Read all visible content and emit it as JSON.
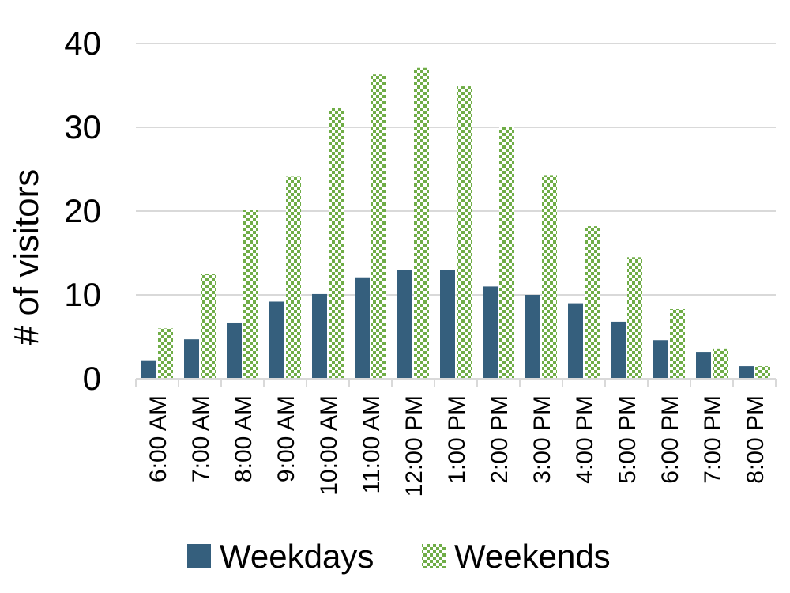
{
  "chart_data": {
    "type": "bar",
    "title": "",
    "xlabel": "",
    "ylabel": "# of visitors",
    "ylim": [
      0,
      40
    ],
    "yticks": [
      0,
      10,
      20,
      30,
      40
    ],
    "grid": true,
    "legend_position": "bottom",
    "categories": [
      "6:00 AM",
      "7:00 AM",
      "8:00 AM",
      "9:00 AM",
      "10:00 AM",
      "11:00 AM",
      "12:00 PM",
      "1:00 PM",
      "2:00 PM",
      "3:00 PM",
      "4:00 PM",
      "5:00 PM",
      "6:00 PM",
      "7:00 PM",
      "8:00 PM"
    ],
    "series": [
      {
        "name": "Weekdays",
        "color": "#355f7d",
        "pattern": "solid",
        "values": [
          2.2,
          4.7,
          6.7,
          9.2,
          10.1,
          12.1,
          13.0,
          13.0,
          11.0,
          10.0,
          9.0,
          6.8,
          4.6,
          3.2,
          1.5
        ]
      },
      {
        "name": "Weekends",
        "color": "#70ad47",
        "pattern": "checker",
        "values": [
          6.0,
          12.5,
          20.1,
          24.1,
          32.3,
          36.3,
          37.1,
          34.9,
          30.0,
          24.3,
          18.2,
          14.5,
          8.3,
          3.6,
          1.5
        ]
      }
    ]
  }
}
